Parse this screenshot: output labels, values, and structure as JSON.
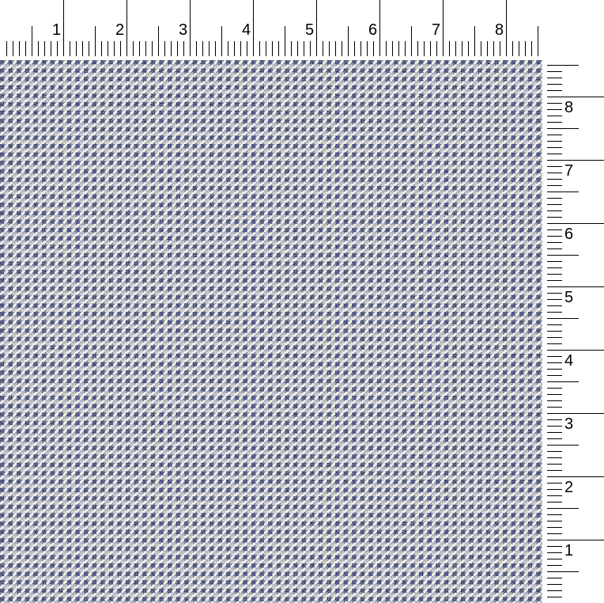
{
  "colors": {
    "navy": "#1f2c6b",
    "cream": "#efede3",
    "ruler_ink": "#000000"
  },
  "pattern": "houndstooth",
  "top_ruler": {
    "labels": [
      "1",
      "2",
      "3",
      "4",
      "5",
      "6",
      "7",
      "8"
    ]
  },
  "right_ruler": {
    "labels": [
      "1",
      "2",
      "3",
      "4",
      "5",
      "6",
      "7",
      "8"
    ]
  }
}
